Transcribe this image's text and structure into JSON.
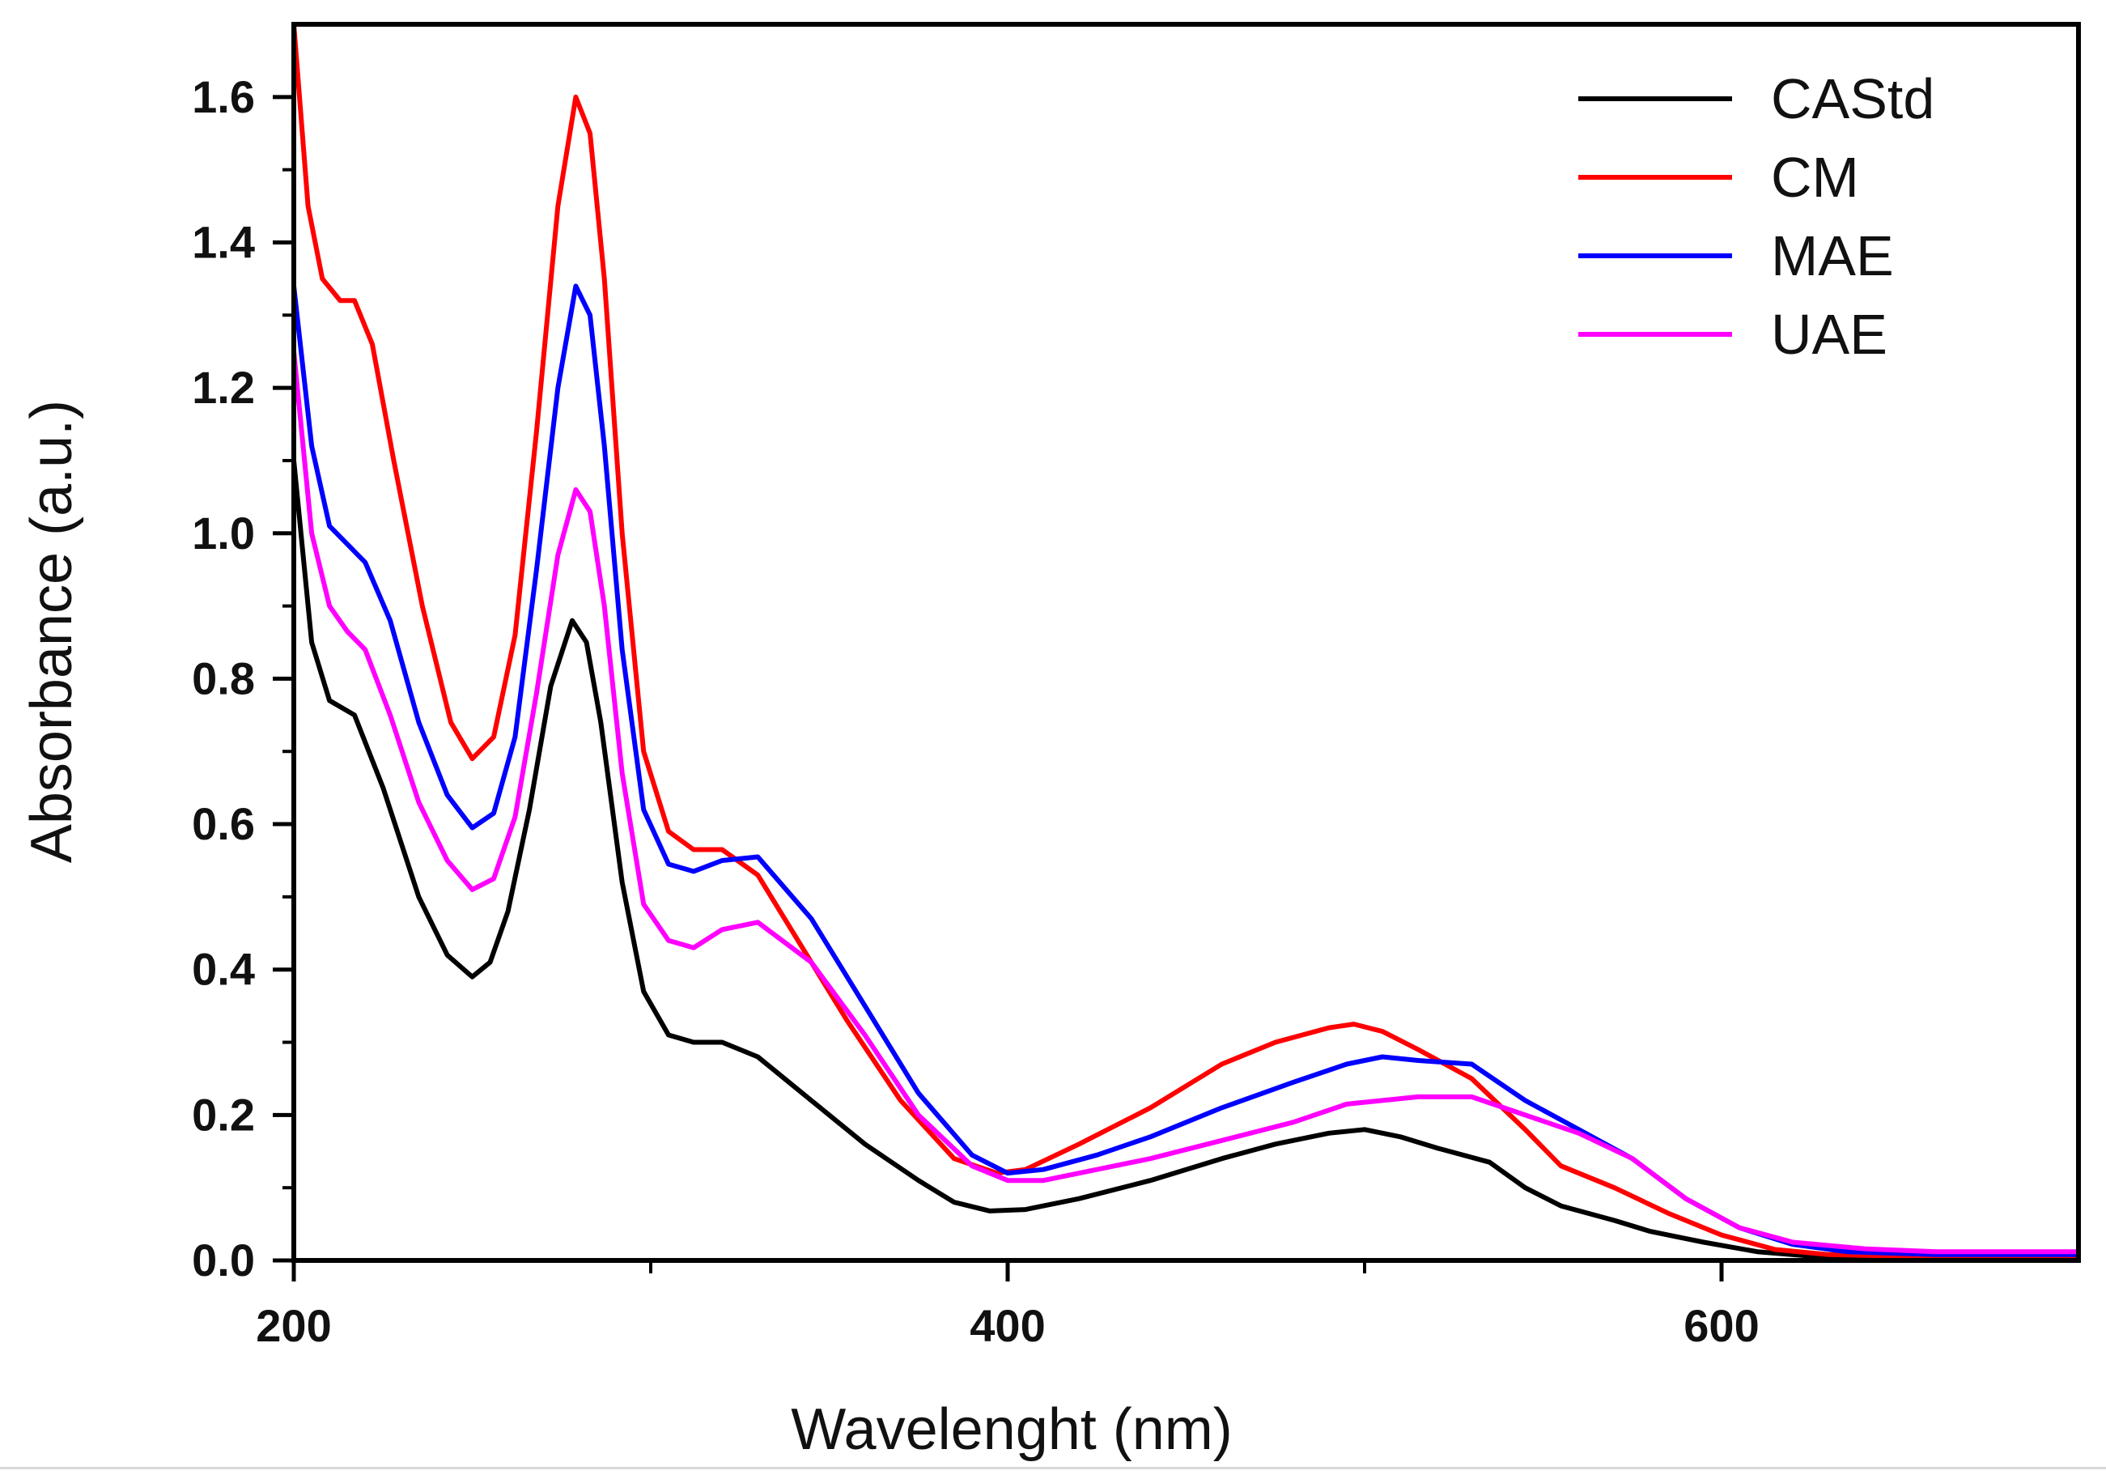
{
  "chart_data": {
    "type": "line",
    "title": "",
    "xlabel": "Wavelenght (nm)",
    "ylabel": "Absorbance (a.u.)",
    "xlim": [
      200,
      700
    ],
    "ylim": [
      0.0,
      1.7
    ],
    "x_ticks": [
      200,
      400,
      600
    ],
    "x_tick_labels": [
      "200",
      "400",
      "600"
    ],
    "x_minor_ticks": [
      300,
      500
    ],
    "y_ticks": [
      0.0,
      0.2,
      0.4,
      0.6,
      0.8,
      1.0,
      1.2,
      1.4,
      1.6
    ],
    "y_tick_labels": [
      "0.0",
      "0.2",
      "0.4",
      "0.6",
      "0.8",
      "1.0",
      "1.2",
      "1.4",
      "1.6"
    ],
    "legend_position": "top-right",
    "grid": false,
    "series": [
      {
        "name": "CAStd",
        "color": "#000000",
        "points": [
          [
            200,
            1.1
          ],
          [
            205,
            0.85
          ],
          [
            210,
            0.77
          ],
          [
            217,
            0.75
          ],
          [
            225,
            0.65
          ],
          [
            235,
            0.5
          ],
          [
            243,
            0.42
          ],
          [
            250,
            0.39
          ],
          [
            255,
            0.41
          ],
          [
            260,
            0.48
          ],
          [
            266,
            0.62
          ],
          [
            272,
            0.79
          ],
          [
            278,
            0.88
          ],
          [
            282,
            0.85
          ],
          [
            286,
            0.74
          ],
          [
            292,
            0.52
          ],
          [
            298,
            0.37
          ],
          [
            305,
            0.31
          ],
          [
            312,
            0.3
          ],
          [
            320,
            0.3
          ],
          [
            330,
            0.28
          ],
          [
            345,
            0.22
          ],
          [
            360,
            0.16
          ],
          [
            375,
            0.11
          ],
          [
            385,
            0.08
          ],
          [
            395,
            0.068
          ],
          [
            405,
            0.07
          ],
          [
            420,
            0.085
          ],
          [
            440,
            0.11
          ],
          [
            460,
            0.14
          ],
          [
            475,
            0.16
          ],
          [
            490,
            0.175
          ],
          [
            500,
            0.18
          ],
          [
            510,
            0.17
          ],
          [
            520,
            0.155
          ],
          [
            535,
            0.135
          ],
          [
            545,
            0.1
          ],
          [
            555,
            0.075
          ],
          [
            570,
            0.055
          ],
          [
            580,
            0.04
          ],
          [
            595,
            0.025
          ],
          [
            610,
            0.012
          ],
          [
            625,
            0.006
          ],
          [
            650,
            0.004
          ],
          [
            700,
            0.004
          ]
        ]
      },
      {
        "name": "CM",
        "color": "#ff0000",
        "points": [
          [
            200,
            1.7
          ],
          [
            204,
            1.45
          ],
          [
            208,
            1.35
          ],
          [
            213,
            1.32
          ],
          [
            217,
            1.32
          ],
          [
            222,
            1.26
          ],
          [
            228,
            1.1
          ],
          [
            236,
            0.9
          ],
          [
            244,
            0.74
          ],
          [
            250,
            0.69
          ],
          [
            256,
            0.72
          ],
          [
            262,
            0.86
          ],
          [
            268,
            1.14
          ],
          [
            274,
            1.45
          ],
          [
            279,
            1.6
          ],
          [
            283,
            1.55
          ],
          [
            287,
            1.35
          ],
          [
            292,
            1.0
          ],
          [
            298,
            0.7
          ],
          [
            305,
            0.59
          ],
          [
            312,
            0.565
          ],
          [
            320,
            0.565
          ],
          [
            330,
            0.53
          ],
          [
            340,
            0.45
          ],
          [
            355,
            0.33
          ],
          [
            370,
            0.22
          ],
          [
            385,
            0.14
          ],
          [
            397,
            0.12
          ],
          [
            405,
            0.125
          ],
          [
            420,
            0.16
          ],
          [
            440,
            0.21
          ],
          [
            460,
            0.27
          ],
          [
            475,
            0.3
          ],
          [
            490,
            0.32
          ],
          [
            497,
            0.325
          ],
          [
            505,
            0.315
          ],
          [
            515,
            0.29
          ],
          [
            530,
            0.25
          ],
          [
            545,
            0.18
          ],
          [
            555,
            0.13
          ],
          [
            570,
            0.1
          ],
          [
            585,
            0.065
          ],
          [
            600,
            0.035
          ],
          [
            615,
            0.015
          ],
          [
            630,
            0.008
          ],
          [
            650,
            0.006
          ],
          [
            700,
            0.005
          ]
        ]
      },
      {
        "name": "MAE",
        "color": "#0000ff",
        "points": [
          [
            200,
            1.34
          ],
          [
            205,
            1.12
          ],
          [
            210,
            1.01
          ],
          [
            215,
            0.985
          ],
          [
            220,
            0.96
          ],
          [
            227,
            0.88
          ],
          [
            235,
            0.74
          ],
          [
            243,
            0.64
          ],
          [
            250,
            0.595
          ],
          [
            256,
            0.615
          ],
          [
            262,
            0.72
          ],
          [
            268,
            0.95
          ],
          [
            274,
            1.2
          ],
          [
            279,
            1.34
          ],
          [
            283,
            1.3
          ],
          [
            287,
            1.12
          ],
          [
            292,
            0.84
          ],
          [
            298,
            0.62
          ],
          [
            305,
            0.545
          ],
          [
            312,
            0.535
          ],
          [
            320,
            0.55
          ],
          [
            330,
            0.555
          ],
          [
            345,
            0.47
          ],
          [
            360,
            0.35
          ],
          [
            375,
            0.23
          ],
          [
            390,
            0.145
          ],
          [
            400,
            0.12
          ],
          [
            410,
            0.125
          ],
          [
            425,
            0.145
          ],
          [
            440,
            0.17
          ],
          [
            460,
            0.21
          ],
          [
            480,
            0.245
          ],
          [
            495,
            0.27
          ],
          [
            505,
            0.28
          ],
          [
            515,
            0.275
          ],
          [
            530,
            0.27
          ],
          [
            545,
            0.22
          ],
          [
            560,
            0.18
          ],
          [
            575,
            0.14
          ],
          [
            590,
            0.085
          ],
          [
            605,
            0.045
          ],
          [
            620,
            0.022
          ],
          [
            635,
            0.012
          ],
          [
            660,
            0.008
          ],
          [
            700,
            0.008
          ]
        ]
      },
      {
        "name": "UAE",
        "color": "#ff00ff",
        "points": [
          [
            200,
            1.25
          ],
          [
            205,
            1.0
          ],
          [
            210,
            0.9
          ],
          [
            215,
            0.865
          ],
          [
            220,
            0.84
          ],
          [
            227,
            0.75
          ],
          [
            235,
            0.63
          ],
          [
            243,
            0.55
          ],
          [
            250,
            0.51
          ],
          [
            256,
            0.525
          ],
          [
            262,
            0.61
          ],
          [
            268,
            0.78
          ],
          [
            274,
            0.97
          ],
          [
            279,
            1.06
          ],
          [
            283,
            1.03
          ],
          [
            287,
            0.9
          ],
          [
            292,
            0.67
          ],
          [
            298,
            0.49
          ],
          [
            305,
            0.44
          ],
          [
            312,
            0.43
          ],
          [
            320,
            0.455
          ],
          [
            330,
            0.465
          ],
          [
            345,
            0.41
          ],
          [
            360,
            0.31
          ],
          [
            375,
            0.2
          ],
          [
            390,
            0.13
          ],
          [
            400,
            0.11
          ],
          [
            410,
            0.11
          ],
          [
            425,
            0.125
          ],
          [
            440,
            0.14
          ],
          [
            460,
            0.165
          ],
          [
            480,
            0.19
          ],
          [
            495,
            0.215
          ],
          [
            505,
            0.22
          ],
          [
            515,
            0.225
          ],
          [
            530,
            0.225
          ],
          [
            545,
            0.2
          ],
          [
            560,
            0.175
          ],
          [
            575,
            0.14
          ],
          [
            590,
            0.085
          ],
          [
            605,
            0.045
          ],
          [
            620,
            0.025
          ],
          [
            640,
            0.016
          ],
          [
            660,
            0.012
          ],
          [
            700,
            0.012
          ]
        ]
      }
    ]
  }
}
